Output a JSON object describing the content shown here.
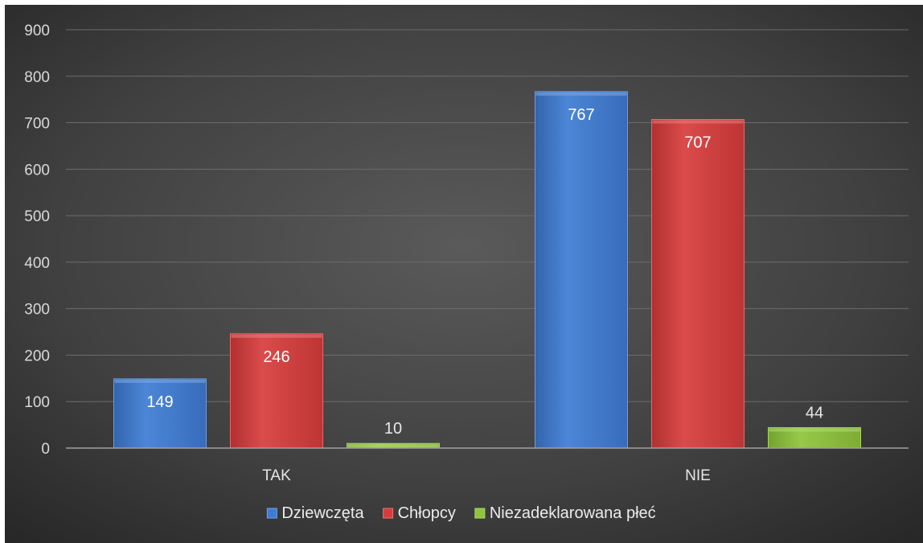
{
  "chart_data": {
    "type": "bar",
    "categories": [
      "TAK",
      "NIE"
    ],
    "series": [
      {
        "name": "Dziewczęta",
        "values": [
          149,
          767
        ],
        "color": "#3e7bd4"
      },
      {
        "name": "Chłopcy",
        "values": [
          246,
          707
        ],
        "color": "#d83b3b"
      },
      {
        "name": "Niezadeklarowana płeć",
        "values": [
          10,
          44
        ],
        "color": "#8dc43a"
      }
    ],
    "data_labels": true,
    "title": "",
    "xlabel": "",
    "ylabel": "",
    "ylim": [
      0,
      900
    ],
    "yticks": [
      0,
      100,
      200,
      300,
      400,
      500,
      600,
      700,
      800,
      900
    ],
    "grid": true,
    "legend_position": "bottom",
    "background": "dark-radial-gradient"
  }
}
